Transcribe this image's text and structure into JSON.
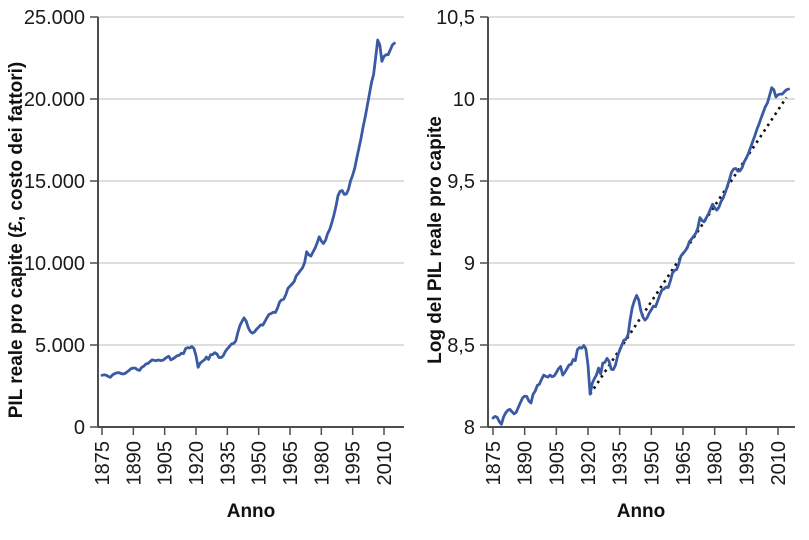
{
  "page": {
    "background": "#ffffff"
  },
  "colors": {
    "line_blue": "#3a5aa4",
    "trend_black": "#111111",
    "grid_gray": "#c9c9c9",
    "axis_gray": "#4d4d4d",
    "text_dark": "#1a1a1a"
  },
  "chart_data": [
    {
      "type": "line",
      "title": "",
      "xlabel": "Anno",
      "ylabel": "PIL reale pro capite (£, costo dei fattori)",
      "xlim": [
        1875,
        2019
      ],
      "ylim": [
        0,
        25000
      ],
      "grid": "horizontal",
      "legend": "none",
      "yticks": [
        {
          "value": 0,
          "label": "0"
        },
        {
          "value": 5000,
          "label": "5.000"
        },
        {
          "value": 10000,
          "label": "10.000"
        },
        {
          "value": 15000,
          "label": "15.000"
        },
        {
          "value": 20000,
          "label": "20.000"
        },
        {
          "value": 25000,
          "label": "25.000"
        }
      ],
      "xticks": [
        {
          "year": 1875,
          "label": "1875"
        },
        {
          "year": 1890,
          "label": "1890"
        },
        {
          "year": 1905,
          "label": "1905"
        },
        {
          "year": 1920,
          "label": "1920"
        },
        {
          "year": 1935,
          "label": "1935"
        },
        {
          "year": 1950,
          "label": "1950"
        },
        {
          "year": 1965,
          "label": "1965"
        },
        {
          "year": 1980,
          "label": "1980"
        },
        {
          "year": 1995,
          "label": "1995"
        },
        {
          "year": 2010,
          "label": "2010"
        }
      ],
      "series": [
        {
          "name": "PIL reale pro capite",
          "color": "#3a5aa4",
          "y_from": "gdp_per_capita_gbp"
        }
      ]
    },
    {
      "type": "line",
      "title": "",
      "xlabel": "Anno",
      "ylabel": "Log del PIL reale pro capite",
      "xlim": [
        1875,
        2019
      ],
      "ylim": [
        8,
        10.5
      ],
      "grid": "horizontal",
      "legend": "none",
      "yticks": [
        {
          "value": 8,
          "label": "8"
        },
        {
          "value": 8.5,
          "label": "8,5"
        },
        {
          "value": 9,
          "label": "9"
        },
        {
          "value": 9.5,
          "label": "9,5"
        },
        {
          "value": 10,
          "label": "10"
        },
        {
          "value": 10.5,
          "label": "10,5"
        }
      ],
      "xticks": [
        {
          "year": 1875,
          "label": "1875"
        },
        {
          "year": 1890,
          "label": "1890"
        },
        {
          "year": 1905,
          "label": "1905"
        },
        {
          "year": 1920,
          "label": "1920"
        },
        {
          "year": 1935,
          "label": "1935"
        },
        {
          "year": 1950,
          "label": "1950"
        },
        {
          "year": 1965,
          "label": "1965"
        },
        {
          "year": 1980,
          "label": "1980"
        },
        {
          "year": 1995,
          "label": "1995"
        },
        {
          "year": 2010,
          "label": "2010"
        }
      ],
      "series": [
        {
          "name": "Log del PIL reale pro capite",
          "color": "#3a5aa4",
          "y_from": "gdp_per_capita_gbp",
          "y_transform": "natural_log"
        }
      ],
      "trend": {
        "style": "dotted",
        "color": "#111111",
        "points": [
          {
            "year": 1921,
            "log_value": 8.2
          },
          {
            "year": 2014,
            "log_value": 10.01
          }
        ]
      }
    }
  ],
  "series_data": {
    "gdp_per_capita_gbp": {
      "unit": "£ reali, costo dei fattori",
      "year_start": 1875,
      "year_end": 2015,
      "values": [
        3150,
        3180,
        3160,
        3080,
        3030,
        3170,
        3250,
        3300,
        3320,
        3270,
        3230,
        3260,
        3360,
        3460,
        3560,
        3600,
        3590,
        3490,
        3450,
        3640,
        3710,
        3840,
        3870,
        3990,
        4090,
        4060,
        4040,
        4090,
        4050,
        4070,
        4150,
        4250,
        4310,
        4090,
        4160,
        4250,
        4350,
        4370,
        4500,
        4470,
        4780,
        4840,
        4820,
        4900,
        4800,
        4350,
        3640,
        3890,
        4000,
        4090,
        4270,
        4120,
        4400,
        4420,
        4530,
        4450,
        4240,
        4230,
        4340,
        4590,
        4760,
        4910,
        5060,
        5090,
        5240,
        5750,
        6180,
        6440,
        6650,
        6470,
        6060,
        5830,
        5720,
        5800,
        5970,
        6090,
        6230,
        6210,
        6430,
        6670,
        6870,
        6920,
        7000,
        6980,
        7250,
        7620,
        7750,
        7790,
        8070,
        8450,
        8590,
        8720,
        8880,
        9220,
        9370,
        9540,
        9700,
        10020,
        10690,
        10500,
        10420,
        10670,
        10910,
        11240,
        11600,
        11340,
        11190,
        11380,
        11790,
        12040,
        12450,
        12920,
        13470,
        14110,
        14370,
        14420,
        14180,
        14210,
        14500,
        15020,
        15360,
        15800,
        16400,
        17000,
        17600,
        18300,
        18900,
        19600,
        20300,
        21000,
        21500,
        22500,
        23600,
        23300,
        22300,
        22600,
        22700,
        22700,
        23000,
        23300,
        23400
      ]
    }
  }
}
